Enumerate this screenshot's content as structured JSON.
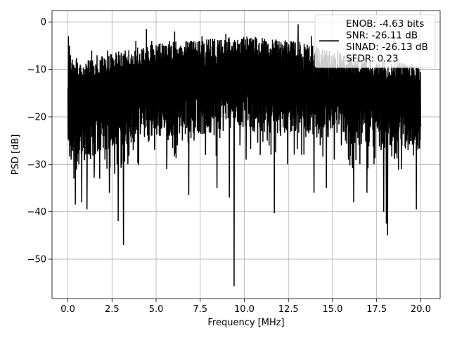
{
  "chart_data": {
    "type": "line",
    "title": "",
    "xlabel": "Frequency [MHz]",
    "ylabel": "PSD [dB]",
    "xlim": [
      -0.9,
      21.1
    ],
    "ylim": [
      -58.3,
      2.4
    ],
    "xticks": [
      0.0,
      2.5,
      5.0,
      7.5,
      10.0,
      12.5,
      15.0,
      17.5,
      20.0
    ],
    "xtick_labels": [
      "0.0",
      "2.5",
      "5.0",
      "7.5",
      "10.0",
      "12.5",
      "15.0",
      "17.5",
      "20.0"
    ],
    "yticks": [
      0,
      -10,
      -20,
      -30,
      -40,
      -50
    ],
    "ytick_labels": [
      "0",
      "−10",
      "−20",
      "−30",
      "−40",
      "−50"
    ],
    "grid": true,
    "legend_position": "top-right",
    "series_color": "#000000",
    "legend_lines": [
      "ENOB: -4.63 bits",
      "SNR: -26.11 dB",
      "SINAD: -26.13 dB",
      "SFDR: 0.23"
    ],
    "x_range": [
      0,
      20
    ],
    "series": [
      {
        "points": [
          [
            0.0,
            -14
          ],
          [
            0.03,
            -3
          ],
          [
            0.06,
            -25
          ],
          [
            0.09,
            -5
          ],
          [
            0.12,
            -20
          ],
          [
            0.15,
            -7
          ],
          [
            0.18,
            -29
          ],
          [
            0.22,
            -10
          ],
          [
            0.26,
            -26
          ],
          [
            0.3,
            -9
          ],
          [
            0.34,
            -33
          ],
          [
            0.38,
            -12
          ],
          [
            0.42,
            -38.5
          ],
          [
            0.47,
            -8
          ],
          [
            0.52,
            -27
          ],
          [
            0.57,
            -11
          ],
          [
            0.62,
            -30
          ],
          [
            0.7,
            -9
          ],
          [
            0.78,
            -38
          ],
          [
            0.85,
            -12
          ],
          [
            0.93,
            -29
          ],
          [
            1.0,
            -10
          ],
          [
            1.08,
            -39.5
          ],
          [
            1.15,
            -8
          ],
          [
            1.25,
            -28
          ],
          [
            1.35,
            -6
          ],
          [
            1.5,
            -30
          ],
          [
            1.65,
            -7
          ],
          [
            1.8,
            -33
          ],
          [
            1.95,
            -9
          ],
          [
            2.1,
            -29
          ],
          [
            2.25,
            -6
          ],
          [
            2.35,
            -36
          ],
          [
            2.5,
            -8
          ],
          [
            2.65,
            -32
          ],
          [
            2.75,
            -10
          ],
          [
            2.85,
            -42
          ],
          [
            2.95,
            -7
          ],
          [
            3.05,
            -30
          ],
          [
            3.15,
            -47
          ],
          [
            3.25,
            -6
          ],
          [
            3.4,
            -30
          ],
          [
            3.55,
            -9
          ],
          [
            3.7,
            -27
          ],
          [
            3.85,
            -4
          ],
          [
            4.0,
            -23
          ],
          [
            4.2,
            -6
          ],
          [
            4.35,
            -21
          ],
          [
            4.45,
            -1.5
          ],
          [
            4.6,
            -25
          ],
          [
            4.75,
            -4
          ],
          [
            4.9,
            -21
          ],
          [
            5.05,
            -6
          ],
          [
            5.2,
            -24
          ],
          [
            5.4,
            -5
          ],
          [
            5.6,
            -31
          ],
          [
            5.75,
            -4
          ],
          [
            5.9,
            -22
          ],
          [
            6.05,
            -2
          ],
          [
            6.2,
            -26
          ],
          [
            6.4,
            -5
          ],
          [
            6.55,
            -21
          ],
          [
            6.7,
            -4
          ],
          [
            6.85,
            -36.5
          ],
          [
            7.0,
            -4
          ],
          [
            7.15,
            -25
          ],
          [
            7.3,
            -6
          ],
          [
            7.45,
            -22
          ],
          [
            7.6,
            -3
          ],
          [
            7.8,
            -28
          ],
          [
            7.95,
            -5
          ],
          [
            8.1,
            -23
          ],
          [
            8.25,
            -4
          ],
          [
            8.45,
            -35
          ],
          [
            8.6,
            -6
          ],
          [
            8.8,
            -23
          ],
          [
            8.95,
            -2.5
          ],
          [
            9.15,
            -37
          ],
          [
            9.3,
            -5
          ],
          [
            9.42,
            -55.7
          ],
          [
            9.55,
            -6
          ],
          [
            9.75,
            -26
          ],
          [
            9.95,
            -5
          ],
          [
            10.1,
            -29
          ],
          [
            10.3,
            -4
          ],
          [
            10.5,
            -23
          ],
          [
            10.7,
            -3.5
          ],
          [
            10.9,
            -28
          ],
          [
            11.1,
            -4
          ],
          [
            11.3,
            -25
          ],
          [
            11.5,
            -6
          ],
          [
            11.7,
            -40.3
          ],
          [
            11.85,
            -4
          ],
          [
            12.05,
            -24
          ],
          [
            12.25,
            -5
          ],
          [
            12.45,
            -30
          ],
          [
            12.65,
            -4
          ],
          [
            12.9,
            -23
          ],
          [
            13.05,
            -0.5
          ],
          [
            13.25,
            -28
          ],
          [
            13.45,
            -7
          ],
          [
            13.65,
            -22
          ],
          [
            13.8,
            -3
          ],
          [
            13.95,
            -36
          ],
          [
            14.1,
            -6
          ],
          [
            14.3,
            -26
          ],
          [
            14.5,
            -9
          ],
          [
            14.65,
            -35
          ],
          [
            14.85,
            -9
          ],
          [
            15.1,
            -29
          ],
          [
            15.3,
            -6
          ],
          [
            15.5,
            -26
          ],
          [
            15.7,
            -10
          ],
          [
            15.9,
            -29
          ],
          [
            16.1,
            -7
          ],
          [
            16.2,
            -38
          ],
          [
            16.35,
            -10
          ],
          [
            16.55,
            -30
          ],
          [
            16.75,
            -9
          ],
          [
            16.95,
            -36
          ],
          [
            17.15,
            -10
          ],
          [
            17.35,
            -30
          ],
          [
            17.55,
            -9
          ],
          [
            17.75,
            -27
          ],
          [
            17.9,
            -40
          ],
          [
            18.0,
            -10
          ],
          [
            18.05,
            -42.5
          ],
          [
            18.12,
            -45
          ],
          [
            18.3,
            -12
          ],
          [
            18.5,
            -28
          ],
          [
            18.7,
            -10
          ],
          [
            18.9,
            -31
          ],
          [
            19.1,
            -10
          ],
          [
            19.35,
            -25
          ],
          [
            19.55,
            -12
          ],
          [
            19.75,
            -39.5
          ],
          [
            19.9,
            -10
          ],
          [
            20.0,
            -22
          ]
        ],
        "noise_profile": [
          [
            0.0,
            -9,
            -26
          ],
          [
            1.0,
            -10,
            -25
          ],
          [
            3.0,
            -8,
            -22
          ],
          [
            6.0,
            -6,
            -20
          ],
          [
            10.0,
            -5,
            -19
          ],
          [
            13.0,
            -6,
            -20
          ],
          [
            16.0,
            -9,
            -22
          ],
          [
            20.0,
            -11,
            -23
          ]
        ],
        "noise_jitter": 8
      }
    ]
  }
}
